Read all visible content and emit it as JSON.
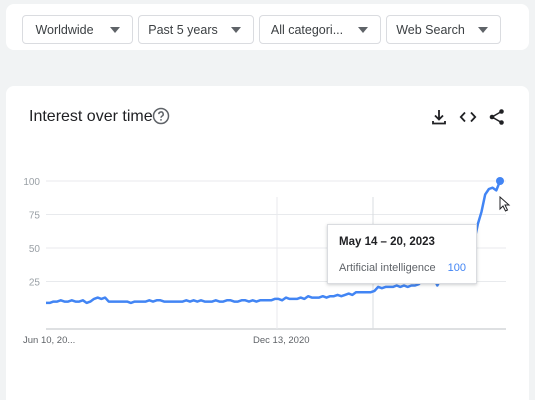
{
  "filters": [
    {
      "label": "Worldwide"
    },
    {
      "label": "Past 5 years"
    },
    {
      "label": "All categori..."
    },
    {
      "label": "Web Search"
    }
  ],
  "card": {
    "title": "Interest over time",
    "icons": [
      "help-icon",
      "download-icon",
      "embed-code-icon",
      "share-icon"
    ]
  },
  "chart_data": {
    "type": "line",
    "ylim": [
      0,
      100
    ],
    "y_ticks": [
      "25",
      "50",
      "75",
      "100"
    ],
    "x_tick_labels": [
      "Jun 10, 20...",
      "Dec 13, 2020"
    ],
    "series": [
      {
        "name": "Artificial intelligence",
        "color": "#4285f4",
        "values": [
          9,
          9,
          10,
          10,
          11,
          10,
          10,
          11,
          10,
          10,
          11,
          9,
          10,
          12,
          13,
          12,
          13,
          10,
          10,
          10,
          10,
          10,
          10,
          9,
          10,
          10,
          10,
          10,
          11,
          10,
          11,
          11,
          10,
          10,
          10,
          10,
          10,
          10,
          11,
          10,
          11,
          10,
          11,
          10,
          10,
          10,
          11,
          10,
          10,
          11,
          11,
          10,
          10,
          11,
          11,
          10,
          11,
          10,
          11,
          11,
          11,
          11,
          12,
          12,
          11,
          13,
          12,
          12,
          12,
          13,
          12,
          14,
          13,
          13,
          13,
          14,
          13,
          14,
          14,
          15,
          14,
          15,
          16,
          15,
          17,
          17,
          17,
          17,
          17,
          18,
          21,
          20,
          21,
          21,
          21,
          22,
          21,
          22,
          21,
          22,
          22,
          23,
          26,
          24,
          24,
          28,
          22,
          27,
          30,
          27,
          28,
          28,
          30,
          38,
          40,
          57,
          55,
          68,
          77,
          90,
          94,
          95,
          93,
          100
        ]
      }
    ],
    "tooltip": {
      "date": "May 14 – 20, 2023",
      "term": "Artificial intelligence",
      "value": "100"
    },
    "grid": true
  }
}
